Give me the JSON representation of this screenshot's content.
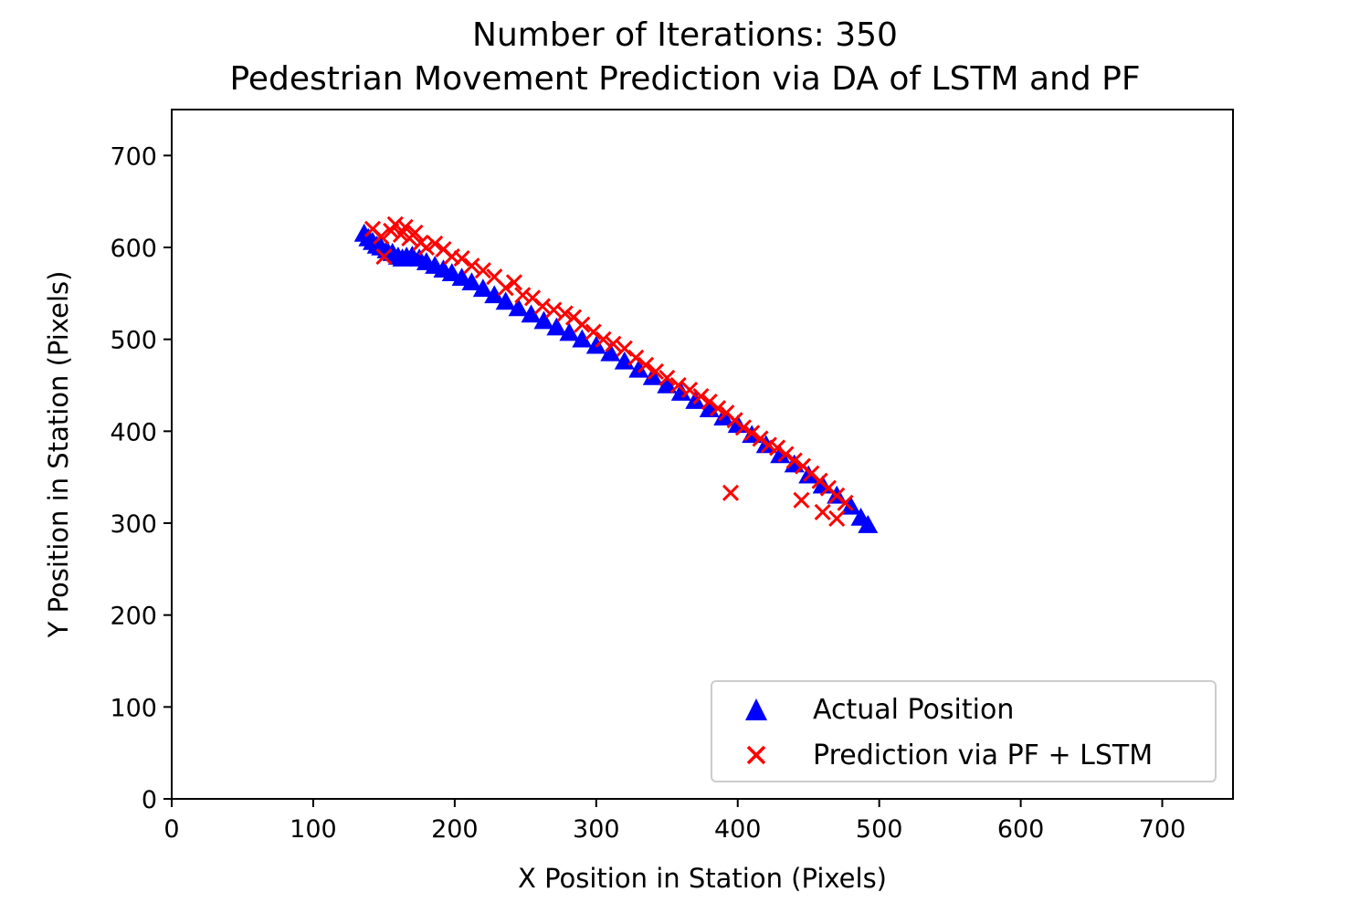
{
  "chart_data": {
    "type": "scatter",
    "title": "Number of Iterations: 350",
    "subtitle": "Pedestrian Movement Prediction via DA of LSTM and PF",
    "xlabel": "X Position in Station (Pixels)",
    "ylabel": "Y Position in Station (Pixels)",
    "xlim": [
      0,
      750
    ],
    "ylim": [
      0,
      750
    ],
    "xticks": [
      "0",
      "100",
      "200",
      "300",
      "400",
      "500",
      "600",
      "700"
    ],
    "yticks": [
      "0",
      "100",
      "200",
      "300",
      "400",
      "500",
      "600",
      "700"
    ],
    "grid": false,
    "legend_position": "lower-right",
    "series": [
      {
        "name": "Actual Position",
        "marker": "triangle",
        "color": "#0000ff",
        "x": [
          136,
          139,
          142,
          145,
          148,
          152,
          156,
          160,
          163,
          166,
          170,
          175,
          180,
          186,
          192,
          198,
          205,
          212,
          220,
          228,
          236,
          245,
          254,
          263,
          272,
          281,
          290,
          300,
          310,
          320,
          330,
          340,
          350,
          360,
          370,
          380,
          390,
          400,
          410,
          420,
          430,
          440,
          450,
          460,
          470,
          480,
          487,
          492
        ],
        "y": [
          615,
          610,
          606,
          602,
          600,
          597,
          594,
          590,
          588,
          590,
          591,
          588,
          584,
          580,
          576,
          572,
          567,
          562,
          555,
          548,
          541,
          534,
          527,
          520,
          513,
          507,
          500,
          493,
          485,
          476,
          467,
          459,
          450,
          442,
          433,
          424,
          415,
          407,
          396,
          385,
          374,
          364,
          352,
          341,
          330,
          318,
          306,
          298
        ]
      },
      {
        "name": "Prediction via PF + LSTM",
        "marker": "x",
        "color": "#ff0000",
        "x": [
          142,
          148,
          150,
          155,
          158,
          162,
          165,
          168,
          172,
          176,
          180,
          186,
          192,
          198,
          205,
          212,
          220,
          228,
          236,
          242,
          248,
          255,
          262,
          270,
          278,
          284,
          290,
          298,
          305,
          312,
          320,
          328,
          335,
          342,
          350,
          358,
          366,
          374,
          380,
          386,
          392,
          398,
          404,
          410,
          416,
          422,
          428,
          434,
          440,
          446,
          452,
          458,
          464,
          470,
          476,
          395,
          445,
          460,
          470
        ],
        "y": [
          620,
          612,
          590,
          618,
          625,
          614,
          622,
          610,
          616,
          605,
          600,
          604,
          598,
          590,
          588,
          580,
          575,
          568,
          556,
          562,
          548,
          545,
          536,
          532,
          528,
          524,
          516,
          508,
          500,
          495,
          490,
          480,
          472,
          465,
          458,
          450,
          445,
          438,
          432,
          425,
          420,
          412,
          404,
          398,
          392,
          385,
          382,
          375,
          368,
          362,
          354,
          346,
          338,
          330,
          322,
          333,
          325,
          312,
          305
        ]
      }
    ]
  }
}
